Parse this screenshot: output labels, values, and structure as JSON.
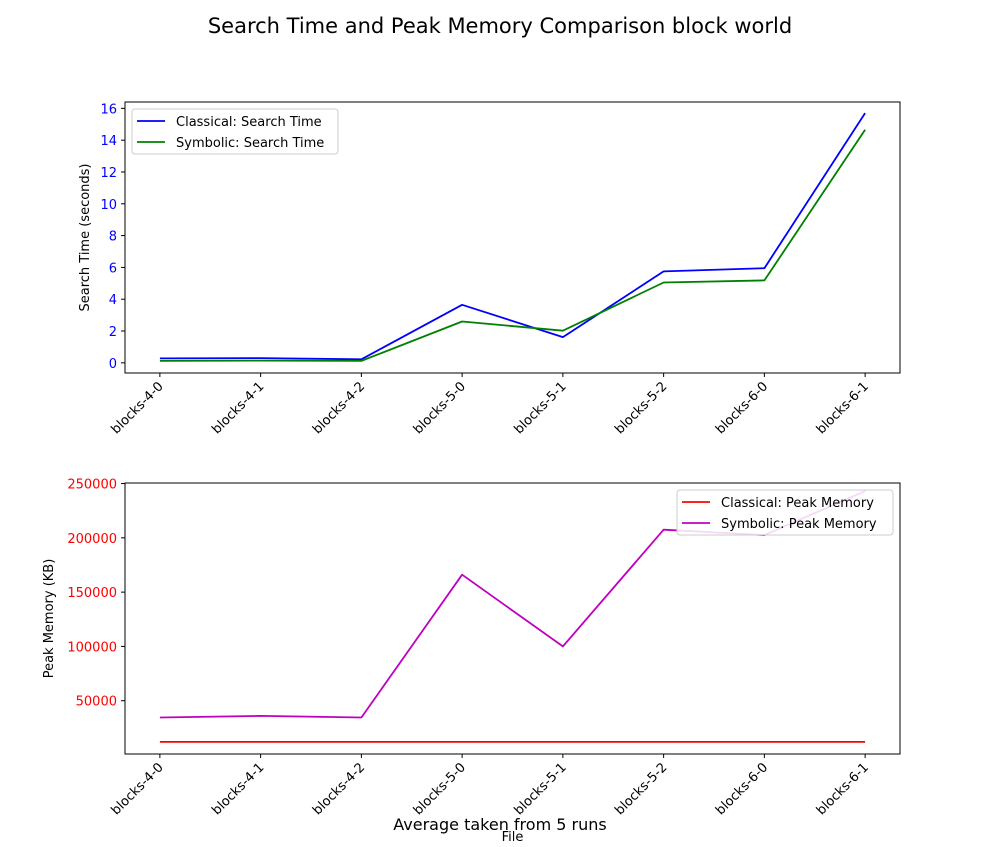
{
  "figure": {
    "title": "Search Time and Peak Memory Comparison block world",
    "footnote": "Average taken from 5 runs"
  },
  "colors": {
    "classical_time": "#0000ff",
    "symbolic_time": "#008000",
    "classical_mem": "#ff0000",
    "symbolic_mem": "#bf00bf",
    "ytick_time": "#0000ff",
    "ytick_mem": "#ff0000"
  },
  "chart_data": [
    {
      "type": "line",
      "categories": [
        "blocks-4-0",
        "blocks-4-1",
        "blocks-4-2",
        "blocks-5-0",
        "blocks-5-1",
        "blocks-5-2",
        "blocks-6-0",
        "blocks-6-1"
      ],
      "series": [
        {
          "name": "Classical: Search Time",
          "values": [
            0.28,
            0.3,
            0.22,
            3.65,
            1.62,
            5.75,
            5.95,
            15.7
          ]
        },
        {
          "name": "Symbolic: Search Time",
          "values": [
            0.12,
            0.14,
            0.12,
            2.6,
            2.02,
            5.05,
            5.18,
            14.65
          ]
        }
      ],
      "xlabel": "",
      "ylabel": "Search Time (seconds)",
      "ylim": [
        -0.64,
        16.4
      ],
      "yticks": [
        0,
        2,
        4,
        6,
        8,
        10,
        12,
        14,
        16
      ],
      "legend": "top-left",
      "grid": false
    },
    {
      "type": "line",
      "categories": [
        "blocks-4-0",
        "blocks-4-1",
        "blocks-4-2",
        "blocks-5-0",
        "blocks-5-1",
        "blocks-5-2",
        "blocks-6-0",
        "blocks-6-1"
      ],
      "series": [
        {
          "name": "Classical: Peak Memory",
          "values": [
            12000,
            12000,
            12000,
            12000,
            12000,
            12000,
            12000,
            12000
          ]
        },
        {
          "name": "Symbolic: Peak Memory",
          "values": [
            34500,
            36000,
            34500,
            166000,
            100000,
            207500,
            202500,
            243000
          ]
        }
      ],
      "xlabel": "File",
      "ylabel": "Peak Memory (KB)",
      "ylim": [
        900,
        250500
      ],
      "yticks": [
        50000,
        100000,
        150000,
        200000,
        250000
      ],
      "legend": "top-right",
      "grid": false
    }
  ]
}
